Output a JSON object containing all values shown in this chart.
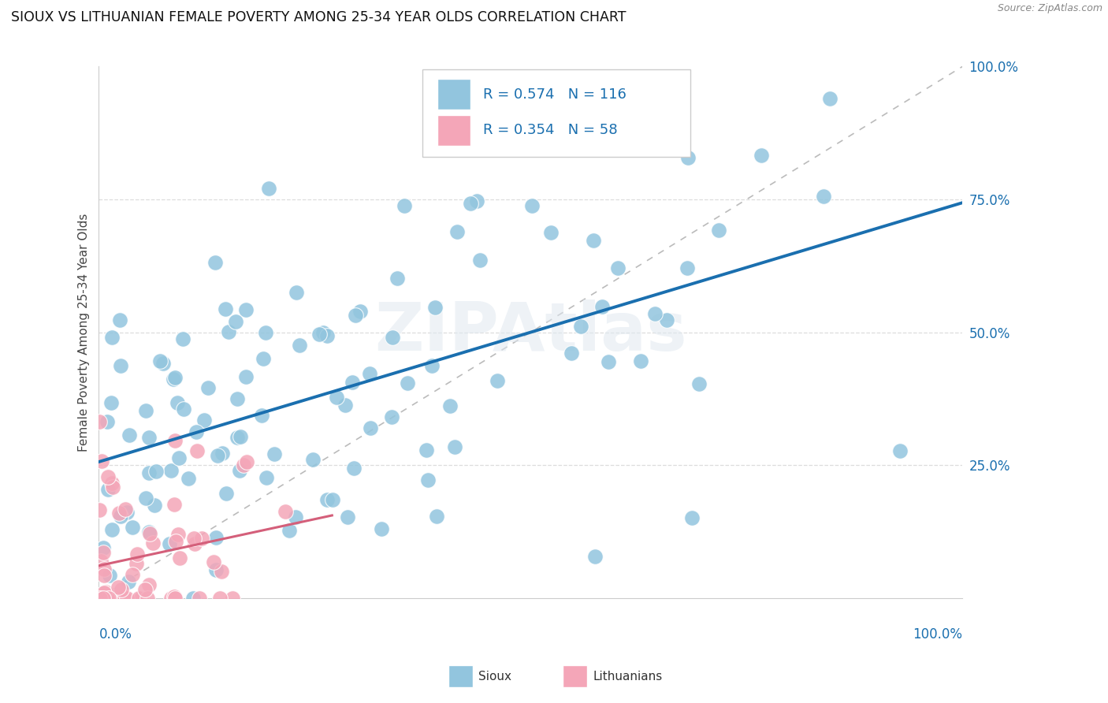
{
  "title": "SIOUX VS LITHUANIAN FEMALE POVERTY AMONG 25-34 YEAR OLDS CORRELATION CHART",
  "source": "Source: ZipAtlas.com",
  "ylabel": "Female Poverty Among 25-34 Year Olds",
  "watermark": "ZIPAtlas",
  "sioux_color": "#92c5de",
  "lith_color": "#f4a6b8",
  "sioux_line_color": "#1a6faf",
  "lith_line_color": "#d45f7a",
  "diagonal_color": "#bbbbbb",
  "background_color": "#ffffff",
  "legend_r_sioux": "R = 0.574",
  "legend_n_sioux": "N = 116",
  "legend_r_lith": "R = 0.354",
  "legend_n_lith": "N = 58",
  "sioux_seed": 7,
  "lith_seed": 13
}
